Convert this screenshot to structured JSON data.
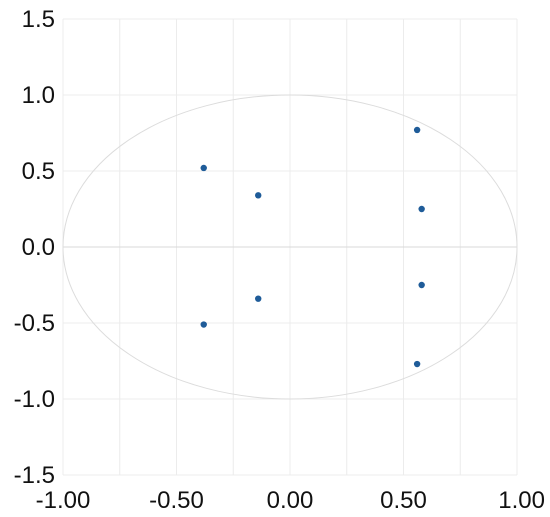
{
  "chart_data": {
    "type": "scatter",
    "title": "",
    "xlabel": "",
    "ylabel": "",
    "xlim": [
      -1.0,
      1.0
    ],
    "ylim": [
      -1.5,
      1.5
    ],
    "x_ticks": [
      -1.0,
      -0.5,
      0.0,
      0.5,
      1.0
    ],
    "x_tick_labels": [
      "-1.00",
      "-0.50",
      "0.00",
      "0.50",
      "1.00"
    ],
    "y_ticks": [
      -1.5,
      -1.0,
      -0.5,
      0.0,
      0.5,
      1.0,
      1.5
    ],
    "y_tick_labels": [
      "-1.5",
      "-1.0",
      "-0.5",
      "0.0",
      "0.5",
      "1.0",
      "1.5"
    ],
    "grid": true,
    "reference_circle": {
      "center": [
        0,
        0
      ],
      "radius": 1
    },
    "marker_color": "#1f5c99",
    "series": [
      {
        "points": [
          {
            "x": -0.38,
            "y": 0.52
          },
          {
            "x": -0.38,
            "y": -0.51
          },
          {
            "x": -0.14,
            "y": 0.34
          },
          {
            "x": -0.14,
            "y": -0.34
          },
          {
            "x": 0.56,
            "y": 0.77
          },
          {
            "x": 0.56,
            "y": -0.77
          },
          {
            "x": 0.58,
            "y": 0.25
          },
          {
            "x": 0.58,
            "y": -0.25
          }
        ]
      }
    ]
  }
}
